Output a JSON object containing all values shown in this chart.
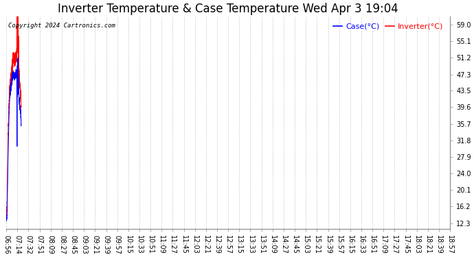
{
  "title": "Inverter Temperature & Case Temperature Wed Apr 3 19:04",
  "copyright": "Copyright 2024 Cartronics.com",
  "legend_case": "Case(°C)",
  "legend_inverter": "Inverter(°C)",
  "yticks": [
    12.3,
    16.2,
    20.1,
    24.0,
    27.9,
    31.8,
    35.7,
    39.6,
    43.5,
    47.3,
    51.2,
    55.1,
    59.0
  ],
  "ylim": [
    11.0,
    61.0
  ],
  "bg_color": "#ffffff",
  "grid_color": "#cccccc",
  "case_color": "blue",
  "inverter_color": "red",
  "title_fontsize": 12,
  "tick_fontsize": 7.0,
  "xtick_labels": [
    "06:56",
    "07:14",
    "07:32",
    "07:51",
    "08:09",
    "08:27",
    "08:45",
    "09:03",
    "09:21",
    "09:39",
    "09:57",
    "10:15",
    "10:33",
    "10:51",
    "11:09",
    "11:27",
    "11:45",
    "12:03",
    "12:21",
    "12:39",
    "12:57",
    "13:15",
    "13:33",
    "13:51",
    "14:09",
    "14:27",
    "14:45",
    "15:03",
    "15:21",
    "15:39",
    "15:57",
    "16:15",
    "16:33",
    "16:51",
    "17:09",
    "17:27",
    "17:45",
    "18:03",
    "18:21",
    "18:39",
    "18:57"
  ],
  "inv_data": [
    13.5,
    14.8,
    16.5,
    22.0,
    28.5,
    34.0,
    37.5,
    40.0,
    42.5,
    44.0,
    45.0,
    45.5,
    46.5,
    47.0,
    47.5,
    48.5,
    49.5,
    50.2,
    51.0,
    51.3,
    51.2,
    51.0,
    50.8,
    51.0,
    50.8,
    51.0,
    51.2,
    51.5,
    51.8,
    59.0,
    56.5,
    57.5,
    55.0,
    51.5,
    49.0,
    47.0,
    45.5,
    44.5,
    43.5,
    42.0,
    39.6
  ],
  "case_data": [
    13.0,
    13.2,
    14.5,
    18.0,
    23.5,
    29.0,
    33.0,
    36.5,
    39.0,
    41.0,
    42.5,
    43.5,
    44.0,
    44.8,
    45.3,
    46.0,
    46.5,
    47.0,
    47.3,
    47.4,
    47.2,
    47.0,
    46.8,
    47.0,
    46.8,
    47.0,
    47.2,
    47.4,
    47.5,
    40.0,
    47.5,
    48.0,
    46.5,
    44.5,
    42.5,
    41.0,
    40.0,
    39.5,
    39.0,
    38.0,
    35.7
  ]
}
